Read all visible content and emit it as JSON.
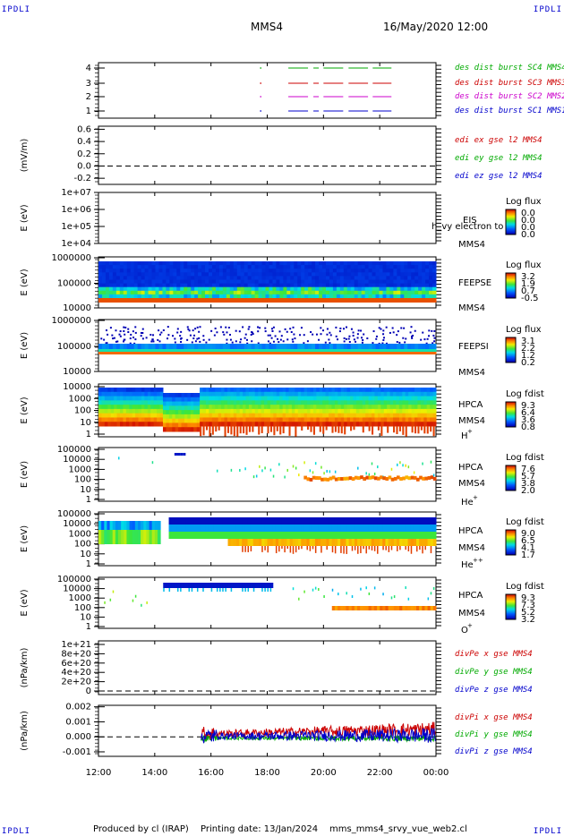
{
  "header": {
    "corner_label": "IPDLI",
    "mission": "MMS4",
    "datetime": "16/May/2020 12:00"
  },
  "footer": {
    "produced_by": "Produced by cl (IRAP)",
    "printing_date": "Printing date: 13/Jan/2024",
    "file_name": "mms_mms4_srvy_vue_web2.cl"
  },
  "x_axis": {
    "ticks": [
      "12:00",
      "14:00",
      "16:00",
      "18:00",
      "20:00",
      "22:00",
      "00:00"
    ]
  },
  "colors": {
    "mms1": "#0000cc",
    "mms2": "#cc00cc",
    "mms3": "#cc0000",
    "mms4": "#00aa00",
    "x": "#cc0000",
    "y": "#00aa00",
    "z": "#0000cc"
  },
  "chart_data": [
    {
      "id": "burst",
      "type": "line",
      "y_ticks": [
        "4",
        "3",
        "2",
        "1"
      ],
      "series": [
        {
          "name": "des dist burst SC1 MMS1",
          "y": 1,
          "intervals": [
            [
              "18:45",
              "19:50"
            ],
            [
              "20:00",
              "21:35"
            ],
            [
              "21:45",
              "22:25"
            ]
          ]
        },
        {
          "name": "des dist burst SC2 MMS2",
          "y": 2,
          "intervals": [
            [
              "18:45",
              "19:50"
            ],
            [
              "20:00",
              "21:35"
            ],
            [
              "21:45",
              "22:25"
            ]
          ]
        },
        {
          "name": "des dist burst SC3 MMS3",
          "y": 3,
          "intervals": [
            [
              "18:45",
              "19:50"
            ],
            [
              "20:00",
              "21:35"
            ],
            [
              "21:45",
              "22:25"
            ]
          ]
        },
        {
          "name": "des dist burst SC4 MMS4",
          "y": 4,
          "intervals": [
            [
              "18:45",
              "19:50"
            ],
            [
              "20:00",
              "21:35"
            ],
            [
              "21:45",
              "22:25"
            ]
          ]
        }
      ]
    },
    {
      "id": "efield",
      "type": "line",
      "ylabel": "(mV/m)",
      "y_ticks": [
        "0.6",
        "0.4",
        "0.2",
        "0.0",
        "-0.2"
      ],
      "ylim": [
        -0.3,
        0.65
      ],
      "series": [
        {
          "name": "edi ex gse l2 MMS4"
        },
        {
          "name": "edi ey gse l2 MMS4"
        },
        {
          "name": "edi ez gse l2 MMS4"
        }
      ]
    },
    {
      "id": "eis",
      "type": "heatmap",
      "ylabel": "E (eV)",
      "y_ticks": [
        "1e+07",
        "1e+06",
        "1e+05",
        "1e+04"
      ],
      "instrument": "EIS",
      "spacecraft": "MMS4",
      "overlay_text": "h_vy electron to",
      "colorbar": {
        "label": "Log flux",
        "ticks": [
          "0.0",
          "0.0",
          "0.0",
          "0.0"
        ]
      }
    },
    {
      "id": "feepse",
      "type": "heatmap",
      "ylabel": "E (eV)",
      "y_ticks": [
        "1000000",
        "100000",
        "10000"
      ],
      "instrument": "FEEPSE",
      "spacecraft": "MMS4",
      "colorbar": {
        "label": "Log flux",
        "ticks": [
          "3.2",
          "1.9",
          "0.7",
          "-0.5"
        ]
      }
    },
    {
      "id": "feepsi",
      "type": "heatmap",
      "ylabel": "E (eV)",
      "y_ticks": [
        "1000000",
        "100000",
        "10000"
      ],
      "instrument": "FEEPSI",
      "spacecraft": "MMS4",
      "colorbar": {
        "label": "Log flux",
        "ticks": [
          "3.1",
          "2.2",
          "1.2",
          "0.2"
        ]
      }
    },
    {
      "id": "hpca_h",
      "type": "heatmap",
      "ylabel": "E (eV)",
      "y_ticks": [
        "10000",
        "1000",
        "100",
        "10",
        "1"
      ],
      "instrument": "HPCA",
      "spacecraft": "MMS4",
      "species": "H",
      "charge": "+",
      "colorbar": {
        "label": "Log fdist",
        "ticks": [
          "9.3",
          "6.4",
          "3.6",
          "0.8"
        ]
      }
    },
    {
      "id": "hpca_he1",
      "type": "heatmap",
      "ylabel": "E (eV)",
      "y_ticks": [
        "100000",
        "10000",
        "1000",
        "100",
        "10",
        "1"
      ],
      "instrument": "HPCA",
      "spacecraft": "MMS4",
      "species": "He",
      "charge": "+",
      "colorbar": {
        "label": "Log fdist",
        "ticks": [
          "7.6",
          "5.7",
          "3.8",
          "2.0"
        ]
      }
    },
    {
      "id": "hpca_he2",
      "type": "heatmap",
      "ylabel": "E (eV)",
      "y_ticks": [
        "100000",
        "10000",
        "1000",
        "100",
        "10",
        "1"
      ],
      "instrument": "HPCA",
      "spacecraft": "MMS4",
      "species": "He",
      "charge": "++",
      "colorbar": {
        "label": "Log fdist",
        "ticks": [
          "9.0",
          "6.5",
          "4.1",
          "1.7"
        ]
      }
    },
    {
      "id": "hpca_o",
      "type": "heatmap",
      "ylabel": "E (eV)",
      "y_ticks": [
        "100000",
        "10000",
        "1000",
        "100",
        "10",
        "1"
      ],
      "instrument": "HPCA",
      "spacecraft": "MMS4",
      "species": "O",
      "charge": "+",
      "colorbar": {
        "label": "Log fdist",
        "ticks": [
          "9.3",
          "7.3",
          "5.2",
          "3.2"
        ]
      }
    },
    {
      "id": "divpe",
      "type": "line",
      "ylabel": "(nPa/km)",
      "y_ticks": [
        "1e+21",
        "8e+20",
        "6e+20",
        "4e+20",
        "2e+20",
        "0"
      ],
      "series": [
        {
          "name": "divPe x gse MMS4"
        },
        {
          "name": "divPe y gse MMS4"
        },
        {
          "name": "divPe z gse MMS4"
        }
      ]
    },
    {
      "id": "divpi",
      "type": "line",
      "ylabel": "(nPa/km)",
      "y_ticks": [
        "0.002",
        "0.001",
        "0.000",
        "-0.001"
      ],
      "ylim": [
        -0.0013,
        0.0021
      ],
      "series": [
        {
          "name": "divPi x gse MMS4"
        },
        {
          "name": "divPi y gse MMS4"
        },
        {
          "name": "divPi z gse MMS4"
        }
      ]
    }
  ]
}
